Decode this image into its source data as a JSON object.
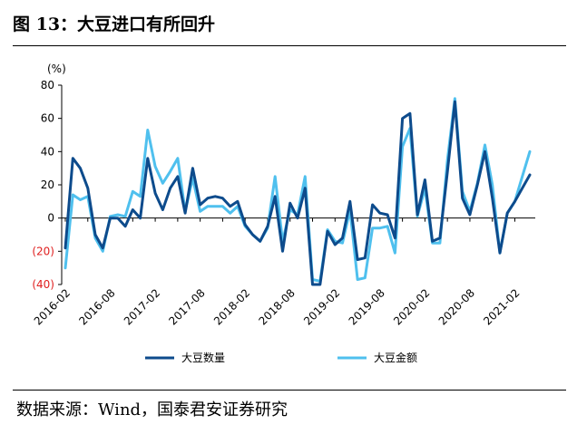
{
  "header": {
    "title": "图 13：大豆进口有所回升"
  },
  "footer": {
    "source": "数据来源：Wind，国泰君安证券研究"
  },
  "colors": {
    "quantity": "#0d4b8c",
    "amount": "#4fc0ee",
    "negative_tick": "#e02020"
  },
  "chart_data": {
    "type": "line",
    "title": "",
    "xlabel": "",
    "ylabel": "(%)",
    "ylim": [
      -40,
      80
    ],
    "y_ticks": [
      80,
      60,
      40,
      20,
      0,
      -20,
      -40
    ],
    "y_tick_labels": [
      "80",
      "60",
      "40",
      "20",
      "0",
      "(20)",
      "(40)"
    ],
    "x_tick_labels": [
      "2016-02",
      "2016-08",
      "2017-02",
      "2017-08",
      "2018-02",
      "2018-08",
      "2019-02",
      "2019-08",
      "2020-02",
      "2020-08",
      "2021-02"
    ],
    "x": [
      "2016-02",
      "2016-03",
      "2016-04",
      "2016-05",
      "2016-06",
      "2016-07",
      "2016-08",
      "2016-09",
      "2016-10",
      "2016-11",
      "2016-12",
      "2017-01",
      "2017-02",
      "2017-03",
      "2017-04",
      "2017-05",
      "2017-06",
      "2017-07",
      "2017-08",
      "2017-09",
      "2017-10",
      "2017-11",
      "2017-12",
      "2018-01",
      "2018-02",
      "2018-03",
      "2018-04",
      "2018-05",
      "2018-06",
      "2018-07",
      "2018-08",
      "2018-09",
      "2018-10",
      "2018-11",
      "2018-12",
      "2019-01",
      "2019-02",
      "2019-03",
      "2019-04",
      "2019-05",
      "2019-06",
      "2019-07",
      "2019-08",
      "2019-09",
      "2019-10",
      "2019-11",
      "2019-12",
      "2020-01",
      "2020-02",
      "2020-03",
      "2020-04",
      "2020-05",
      "2020-06",
      "2020-07",
      "2020-08",
      "2020-09",
      "2020-10",
      "2020-11",
      "2020-12",
      "2021-01",
      "2021-02",
      "2021-03",
      "2021-04"
    ],
    "legend_position": "bottom",
    "grid": false,
    "series": [
      {
        "name": "大豆数量",
        "values": [
          -18,
          36,
          30,
          18,
          -10,
          -18,
          0,
          0,
          -5,
          5,
          0,
          36,
          15,
          5,
          18,
          25,
          3,
          30,
          8,
          12,
          13,
          12,
          7,
          10,
          -4,
          -10,
          -14,
          -5,
          13,
          -20,
          9,
          0,
          18,
          -40,
          -40,
          -8,
          -16,
          -12,
          10,
          -25,
          -24,
          8,
          3,
          2,
          -12,
          60,
          63,
          2,
          23,
          -14,
          -12,
          28,
          70,
          12,
          2,
          20,
          40,
          12,
          -21,
          3,
          10,
          18,
          26
        ]
      },
      {
        "name": "大豆金额",
        "values": [
          -30,
          14,
          11,
          13,
          -12,
          -20,
          1,
          2,
          1,
          16,
          13,
          53,
          31,
          21,
          28,
          36,
          4,
          24,
          4,
          7,
          7,
          7,
          3,
          7,
          -5,
          -10,
          -14,
          -6,
          25,
          -14,
          5,
          2,
          25,
          -37,
          -38,
          -7,
          -14,
          -15,
          5,
          -37,
          -36,
          -6,
          -6,
          -5,
          -21,
          43,
          54,
          1,
          18,
          -15,
          -15,
          35,
          72,
          16,
          4,
          21,
          44,
          20,
          -21,
          3,
          10,
          25,
          40
        ]
      }
    ]
  }
}
